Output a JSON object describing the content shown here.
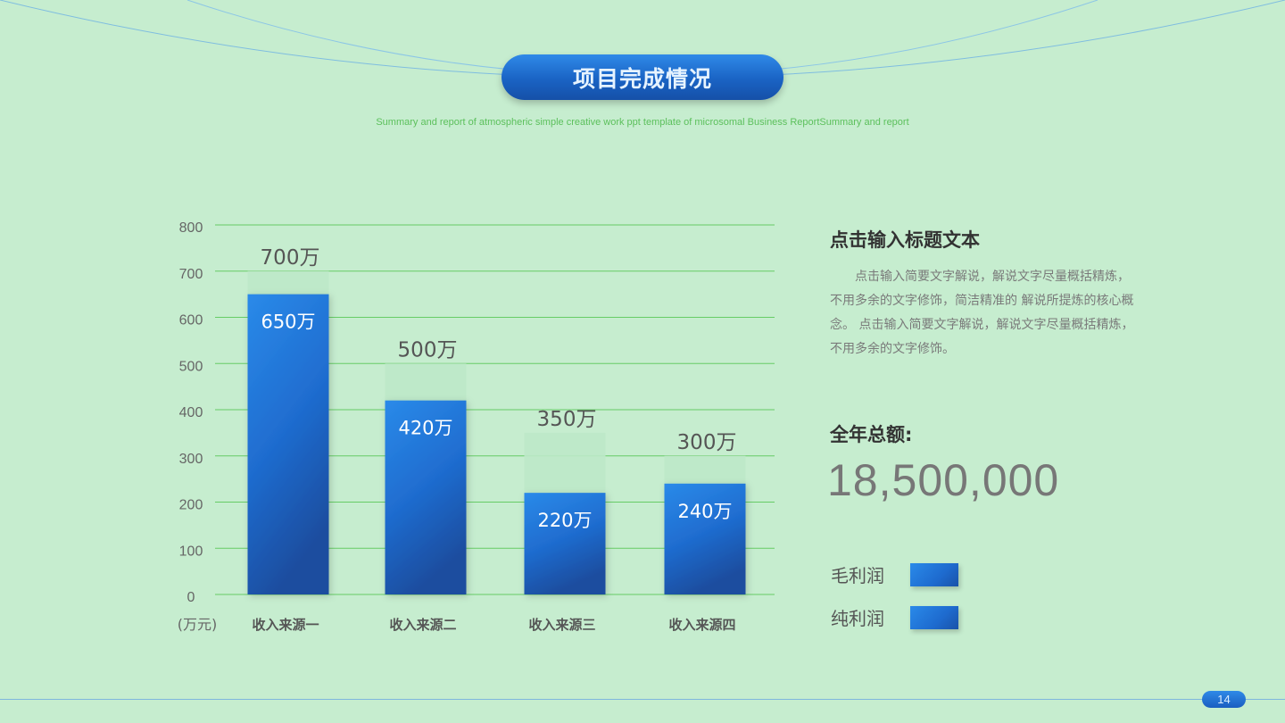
{
  "header": {
    "title": "项目完成情况",
    "subtitle": "Summary and report of atmospheric simple creative work ppt template of microsomal Business ReportSummary and report"
  },
  "chart_data": {
    "type": "bar",
    "categories": [
      "收入来源一",
      "收入来源二",
      "收入来源三",
      "收入来源四"
    ],
    "series": [
      {
        "name": "毛利润",
        "values": [
          700,
          500,
          350,
          300
        ],
        "labels": [
          "700万",
          "500万",
          "350万",
          "300万"
        ]
      },
      {
        "name": "纯利润",
        "values": [
          650,
          420,
          220,
          240
        ],
        "labels": [
          "650万",
          "420万",
          "220万",
          "240万"
        ]
      }
    ],
    "ylabel": "(万元)",
    "yticks": [
      "0",
      "100",
      "200",
      "300",
      "400",
      "500",
      "600",
      "700",
      "800"
    ],
    "ylim": [
      0,
      800
    ],
    "grid": true,
    "colors": {
      "grid": "#66cc66",
      "total_bar": "#bde8c8",
      "main_bar_top": "#2a8ae9",
      "main_bar_bottom": "#1a4d9f"
    }
  },
  "right_panel": {
    "title": "点击输入标题文本",
    "body": "点击输入简要文字解说，解说文字尽量概括精炼，不用多余的文字修饰，简洁精准的 解说所提炼的核心概念。 点击输入简要文字解说，解说文字尽量概括精炼，不用多余的文字修饰。",
    "total_label": "全年总额:",
    "total_value": "18,500,000"
  },
  "legend": [
    {
      "label": "毛利润"
    },
    {
      "label": "纯利润"
    }
  ],
  "footer": {
    "page_number": "14"
  }
}
